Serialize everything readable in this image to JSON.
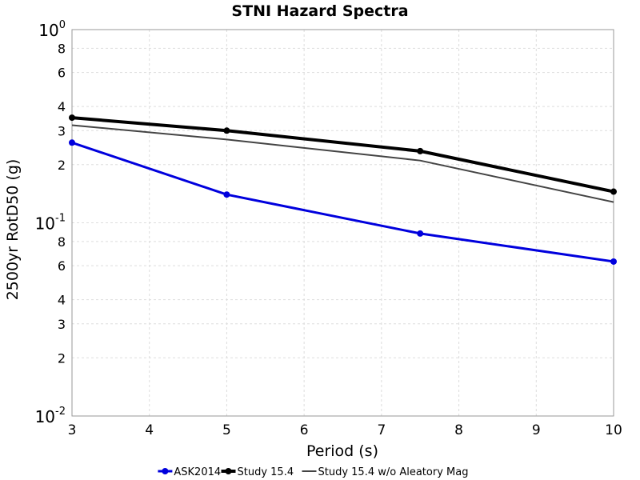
{
  "chart_data": {
    "type": "line",
    "title": "STNI Hazard Spectra",
    "xlabel": "Period (s)",
    "ylabel": "2500yr RotD50 (g)",
    "xlim": [
      3,
      10
    ],
    "ylim": [
      0.01,
      1
    ],
    "yscale": "log",
    "grid": true,
    "legend_position": "bottom",
    "x_ticks": [
      "3",
      "4",
      "5",
      "6",
      "7",
      "8",
      "9",
      "10"
    ],
    "y_decade_ticks": [
      {
        "value": 1,
        "base": "10",
        "exp": "0"
      },
      {
        "value": 0.1,
        "base": "10",
        "exp": "-1"
      },
      {
        "value": 0.01,
        "base": "10",
        "exp": "-2"
      }
    ],
    "y_minor_ticks": [
      {
        "value": 0.8,
        "label": "8"
      },
      {
        "value": 0.6,
        "label": "6"
      },
      {
        "value": 0.4,
        "label": "4"
      },
      {
        "value": 0.3,
        "label": "3"
      },
      {
        "value": 0.2,
        "label": "2"
      },
      {
        "value": 0.08,
        "label": "8"
      },
      {
        "value": 0.06,
        "label": "6"
      },
      {
        "value": 0.04,
        "label": "4"
      },
      {
        "value": 0.03,
        "label": "3"
      },
      {
        "value": 0.02,
        "label": "2"
      }
    ],
    "series": [
      {
        "name": "ASK2014",
        "color": "#0000dd",
        "markers": true,
        "x": [
          3,
          5,
          7.5,
          10
        ],
        "y": [
          0.26,
          0.14,
          0.088,
          0.063
        ]
      },
      {
        "name": "Study 15.4",
        "color": "#000000",
        "markers": true,
        "x": [
          3,
          5,
          7.5,
          10
        ],
        "y": [
          0.35,
          0.3,
          0.235,
          0.145
        ]
      },
      {
        "name": "Study 15.4 w/o Aleatory Mag",
        "color": "#444444",
        "markers": false,
        "x": [
          3,
          5,
          7.5,
          10
        ],
        "y": [
          0.32,
          0.27,
          0.21,
          0.128
        ]
      }
    ]
  }
}
